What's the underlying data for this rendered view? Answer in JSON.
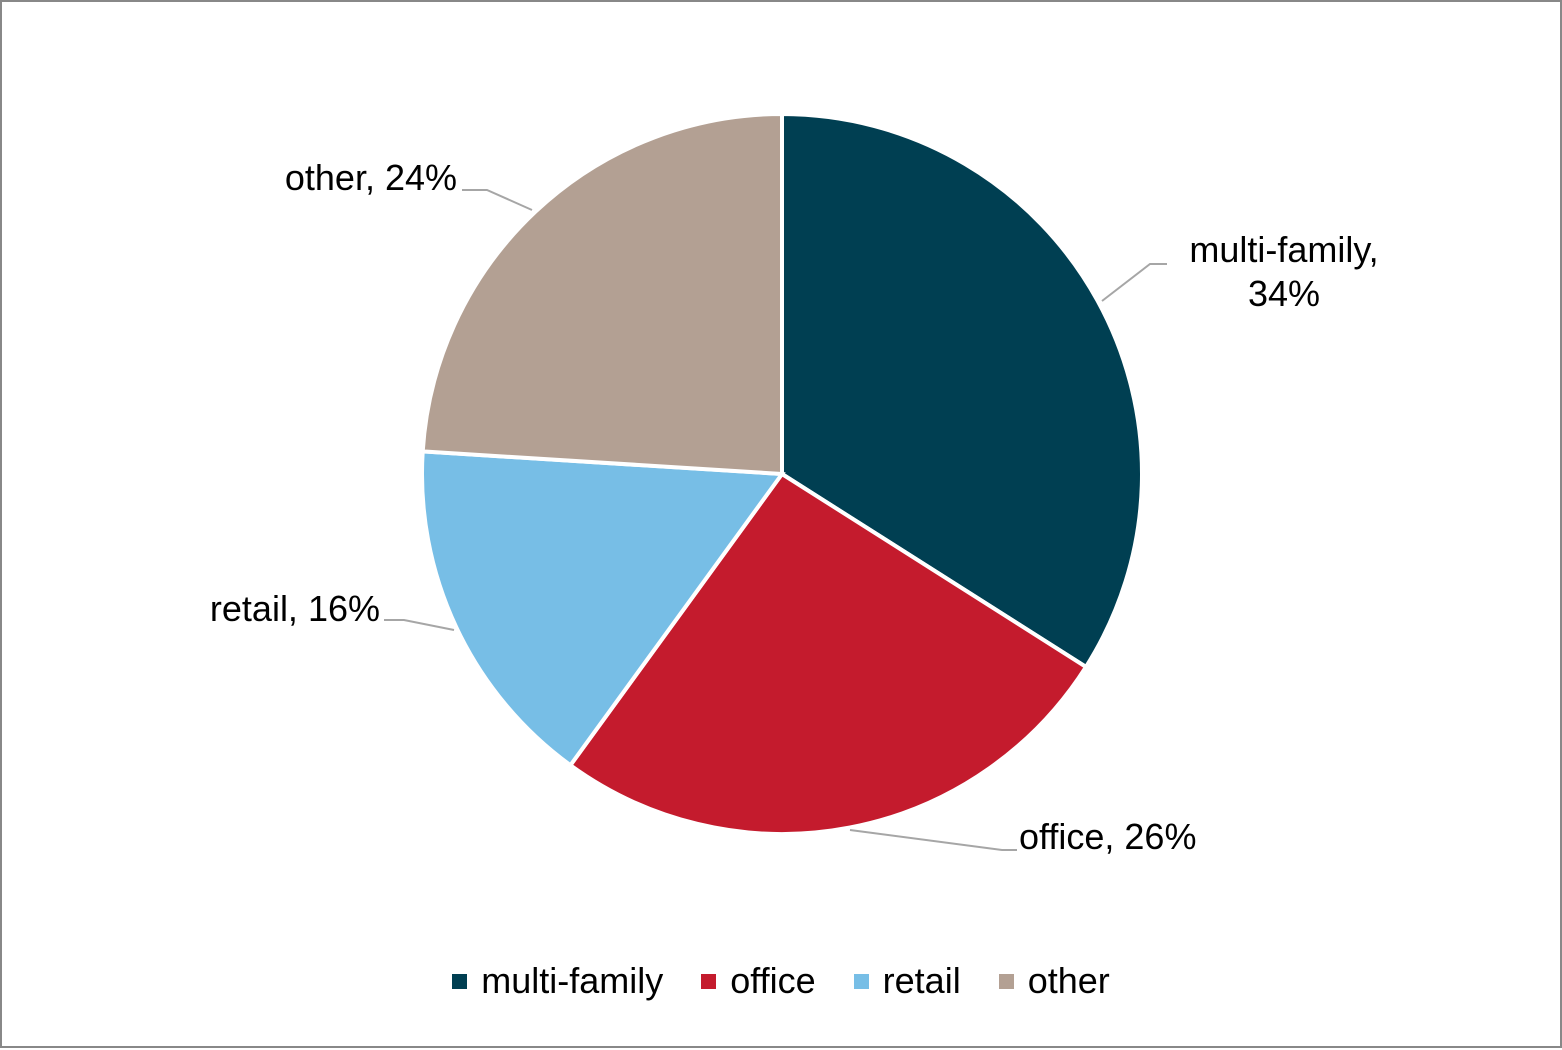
{
  "chart_data": {
    "type": "pie",
    "categories": [
      "multi-family",
      "office",
      "retail",
      "other"
    ],
    "values": [
      34,
      26,
      16,
      24
    ],
    "value_labels": [
      "multi-family, 34%",
      "office, 26%",
      "retail, 16%",
      "other, 24%"
    ],
    "colors": [
      "#003f52",
      "#c41b2d",
      "#77bee6",
      "#b3a093"
    ],
    "legend": "bottom"
  }
}
